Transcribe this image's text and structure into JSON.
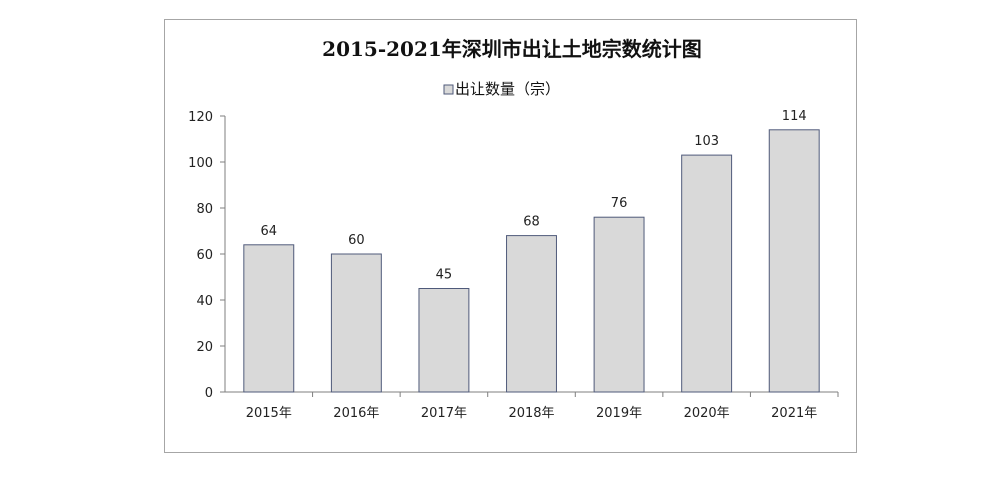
{
  "chart_data": {
    "type": "bar",
    "title": "2015-2021年深圳市出让土地宗数统计图",
    "categories": [
      "2015年",
      "2016年",
      "2017年",
      "2018年",
      "2019年",
      "2020年",
      "2021年"
    ],
    "series": [
      {
        "name": "出让数量（宗）",
        "values": [
          64,
          60,
          45,
          68,
          76,
          103,
          114
        ]
      }
    ],
    "ylim": [
      0,
      120
    ],
    "yticks": [
      0,
      20,
      40,
      60,
      80,
      100,
      120
    ],
    "legend_position": "top",
    "grid": false,
    "data_labels": true,
    "colors": {
      "bar_fill": "#d9d9d9",
      "bar_stroke": "#4f5a7a",
      "axis": "#7f7f7f"
    }
  }
}
